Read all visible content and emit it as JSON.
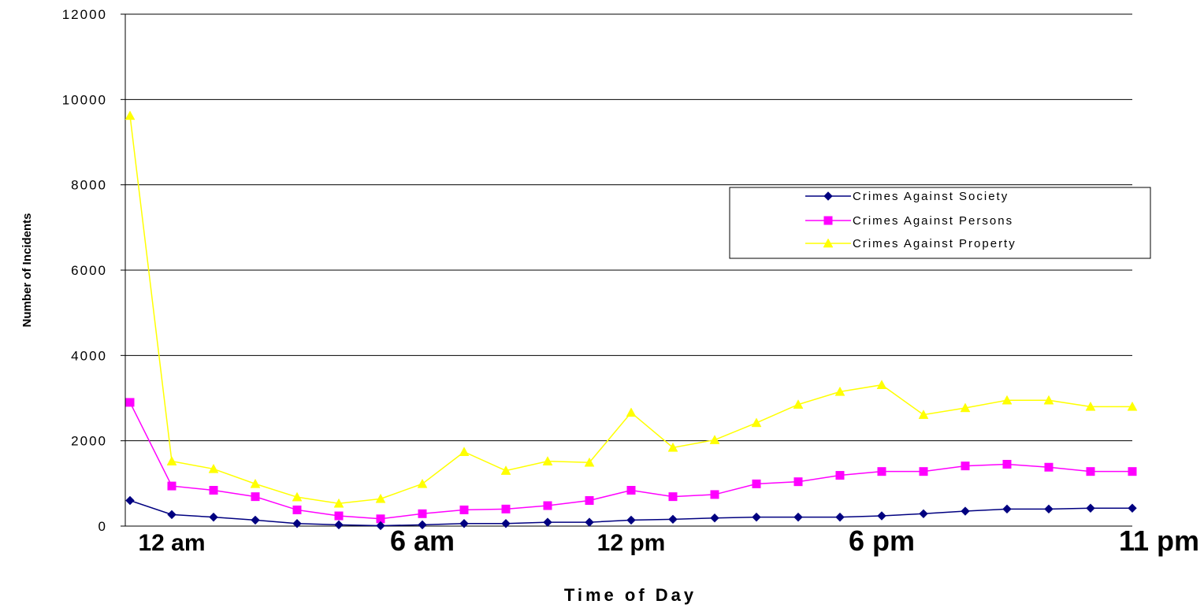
{
  "chart_data": {
    "type": "line",
    "xlabel": "Time of Day",
    "ylabel": "Number of Incidents",
    "ylim": [
      0,
      12000
    ],
    "yticks": [
      "0",
      "2000",
      "4000",
      "6000",
      "8000",
      "10000",
      "12000"
    ],
    "xticks": [
      {
        "label": "12 am",
        "hour": 1
      },
      {
        "label": "6 am",
        "hour": 7
      },
      {
        "label": "12 pm",
        "hour": 12
      },
      {
        "label": "6 pm",
        "hour": 18
      },
      {
        "label": "11 pm",
        "hour": 23
      }
    ],
    "grid": true,
    "legend_position": "right",
    "x": [
      0,
      1,
      2,
      3,
      4,
      5,
      6,
      7,
      8,
      9,
      10,
      11,
      12,
      13,
      14,
      15,
      16,
      17,
      18,
      19,
      20,
      21,
      22,
      23,
      24
    ],
    "series": [
      {
        "name": "Crimes Against Society",
        "color": "#000080",
        "marker": "diamond",
        "values": [
          600,
          270,
          210,
          140,
          60,
          30,
          10,
          30,
          60,
          60,
          90,
          90,
          140,
          160,
          190,
          210,
          210,
          210,
          240,
          290,
          350,
          400,
          400,
          420,
          420
        ]
      },
      {
        "name": "Crimes Against Persons",
        "color": "#ff00ff",
        "marker": "square",
        "values": [
          2900,
          940,
          840,
          690,
          380,
          240,
          170,
          290,
          380,
          400,
          480,
          600,
          840,
          690,
          740,
          990,
          1040,
          1190,
          1280,
          1280,
          1410,
          1450,
          1380,
          1280,
          1280
        ]
      },
      {
        "name": "Crimes Against Property",
        "color": "#ffff00",
        "marker": "triangle",
        "values": [
          9620,
          1520,
          1340,
          990,
          680,
          530,
          640,
          990,
          1740,
          1300,
          1520,
          1490,
          2660,
          1840,
          2020,
          2420,
          2850,
          3150,
          3310,
          2610,
          2770,
          2950,
          2950,
          2800,
          2800
        ]
      }
    ]
  }
}
